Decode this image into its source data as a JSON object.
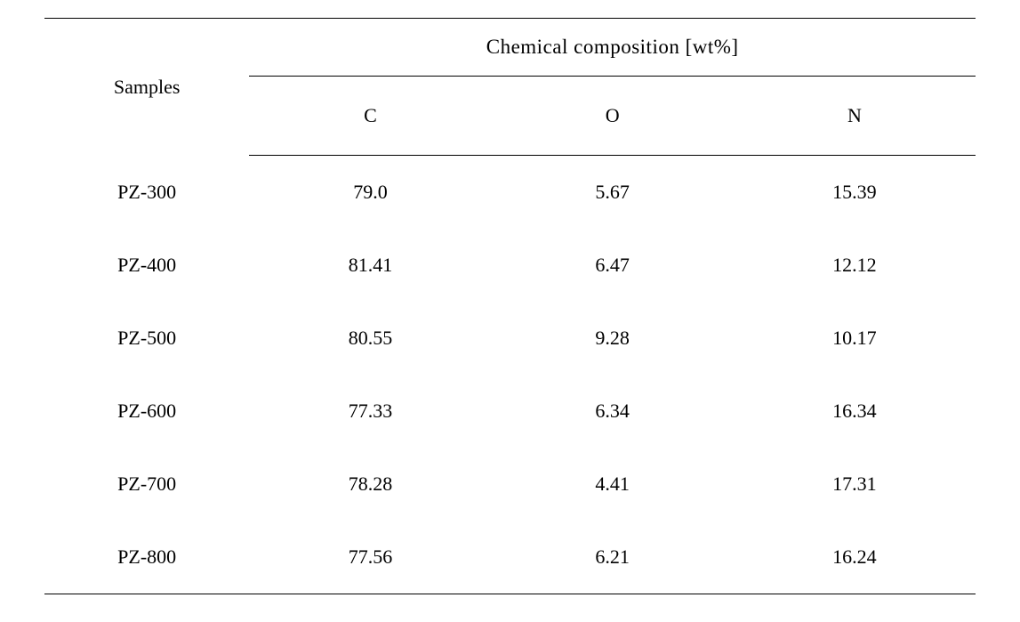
{
  "table": {
    "type": "table",
    "rule_color": "#000000",
    "background_color": "#ffffff",
    "text_color": "#000000",
    "font_family_note": "serif (Palatino/Book Antiqua style)",
    "header_fontsize_pt": 17,
    "body_fontsize_pt": 17,
    "columns": [
      "Samples",
      "C",
      "O",
      "N"
    ],
    "column_widths_pct": [
      22,
      26,
      26,
      26
    ],
    "alignment": [
      "center",
      "center",
      "center",
      "center"
    ],
    "samples_label": "Samples",
    "group_label": "Chemical composition [wt%]",
    "sub_labels": {
      "c": "C",
      "o": "O",
      "n": "N"
    },
    "rows": [
      {
        "sample": "PZ-300",
        "c": "79.0",
        "o": "5.67",
        "n": "15.39"
      },
      {
        "sample": "PZ-400",
        "c": "81.41",
        "o": "6.47",
        "n": "12.12"
      },
      {
        "sample": "PZ-500",
        "c": "80.55",
        "o": "9.28",
        "n": "10.17"
      },
      {
        "sample": "PZ-600",
        "c": "77.33",
        "o": "6.34",
        "n": "16.34"
      },
      {
        "sample": "PZ-700",
        "c": "78.28",
        "o": "4.41",
        "n": "17.31"
      },
      {
        "sample": "PZ-800",
        "c": "77.56",
        "o": "6.21",
        "n": "16.24"
      }
    ]
  }
}
